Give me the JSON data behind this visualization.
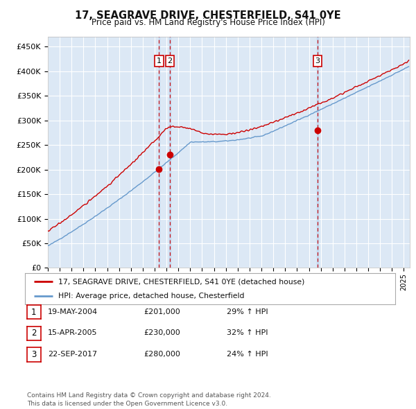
{
  "title": "17, SEAGRAVE DRIVE, CHESTERFIELD, S41 0YE",
  "subtitle": "Price paid vs. HM Land Registry's House Price Index (HPI)",
  "ylabel_ticks": [
    "£0",
    "£50K",
    "£100K",
    "£150K",
    "£200K",
    "£250K",
    "£300K",
    "£350K",
    "£400K",
    "£450K"
  ],
  "ylim": [
    0,
    470000
  ],
  "ytick_vals": [
    0,
    50000,
    100000,
    150000,
    200000,
    250000,
    300000,
    350000,
    400000,
    450000
  ],
  "sale_dates_num": [
    2004.37,
    2005.29,
    2017.72
  ],
  "sale_prices": [
    201000,
    230000,
    280000
  ],
  "sale_labels": [
    "1",
    "2",
    "3"
  ],
  "legend_red": "17, SEAGRAVE DRIVE, CHESTERFIELD, S41 0YE (detached house)",
  "legend_blue": "HPI: Average price, detached house, Chesterfield",
  "table_data": [
    [
      "1",
      "19-MAY-2004",
      "£201,000",
      "29% ↑ HPI"
    ],
    [
      "2",
      "15-APR-2005",
      "£230,000",
      "32% ↑ HPI"
    ],
    [
      "3",
      "22-SEP-2017",
      "£280,000",
      "24% ↑ HPI"
    ]
  ],
  "footer": "Contains HM Land Registry data © Crown copyright and database right 2024.\nThis data is licensed under the Open Government Licence v3.0.",
  "red_color": "#cc0000",
  "blue_color": "#6699cc",
  "blue_fill_color": "#dce8f5",
  "background_color": "#dce8f5",
  "grid_color": "#ffffff",
  "xstart": 1995.0,
  "xend": 2025.5
}
